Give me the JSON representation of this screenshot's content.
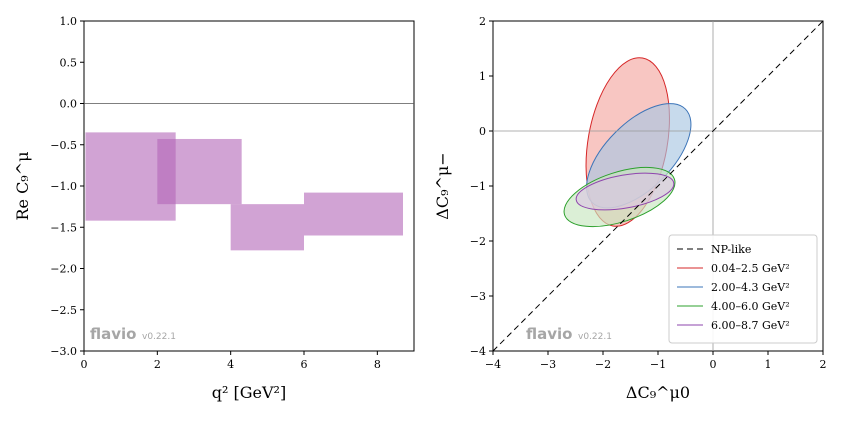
{
  "chart_data": [
    {
      "type": "bar",
      "subtype": "binned-range",
      "xlabel": "q² [GeV²]",
      "ylabel": "Re C₉^μ",
      "xlim": [
        0,
        9
      ],
      "ylim": [
        -3.0,
        1.0
      ],
      "xticks": [
        "0",
        "2",
        "4",
        "6",
        "8"
      ],
      "yticks": [
        "1.0",
        "0.5",
        "0.0",
        "−0.5",
        "−1.0",
        "−1.5",
        "−2.0",
        "−2.5",
        "−3.0"
      ],
      "reference_line_y": 0,
      "color": "#b266b8",
      "bins": [
        {
          "x_min": 0.04,
          "x_max": 2.5,
          "y_min": -1.42,
          "y_max": -0.35
        },
        {
          "x_min": 2.0,
          "x_max": 4.3,
          "y_min": -1.22,
          "y_max": -0.43
        },
        {
          "x_min": 4.0,
          "x_max": 6.0,
          "y_min": -1.78,
          "y_max": -1.22
        },
        {
          "x_min": 6.0,
          "x_max": 8.7,
          "y_min": -1.6,
          "y_max": -1.08
        }
      ],
      "watermark": {
        "name": "flavio",
        "version": "v0.22.1"
      }
    },
    {
      "type": "scatter",
      "subtype": "confidence-ellipses",
      "xlabel": "ΔC₉^μ0",
      "ylabel": "ΔC₉^μ−",
      "xlim": [
        -4,
        2
      ],
      "ylim": [
        -4,
        2
      ],
      "xticks": [
        "−4",
        "−3",
        "−2",
        "−1",
        "0",
        "1",
        "2"
      ],
      "yticks": [
        "2",
        "1",
        "0",
        "−1",
        "−2",
        "−3",
        "−4"
      ],
      "reference_lines": {
        "x": 0,
        "y": 0
      },
      "diagonal": {
        "label": "NP-like",
        "style": "dashed",
        "color": "#000000"
      },
      "legend_position": "lower-right",
      "series": [
        {
          "name": "0.04–2.5 GeV²",
          "edge": "#d62728",
          "fill": "#f4a7a1",
          "cx": -1.55,
          "cy": -0.2,
          "rx": 0.72,
          "ry": 1.55,
          "angle_deg": 10
        },
        {
          "name": "2.00–4.3 GeV²",
          "edge": "#3b74b8",
          "fill": "#a9c6e2",
          "cx": -1.35,
          "cy": -0.45,
          "rx": 0.6,
          "ry": 1.2,
          "angle_deg": 45
        },
        {
          "name": "4.00–6.0 GeV²",
          "edge": "#2ca02c",
          "fill": "#c7e7c0",
          "cx": -1.7,
          "cy": -1.2,
          "rx": 0.45,
          "ry": 1.05,
          "angle_deg": 72
        },
        {
          "name": "6.00–8.7 GeV²",
          "edge": "#8e44ad",
          "fill": "#dcc6e2",
          "cx": -1.6,
          "cy": -1.1,
          "rx": 0.3,
          "ry": 0.9,
          "angle_deg": 80
        }
      ],
      "watermark": {
        "name": "flavio",
        "version": "v0.22.1"
      }
    }
  ]
}
